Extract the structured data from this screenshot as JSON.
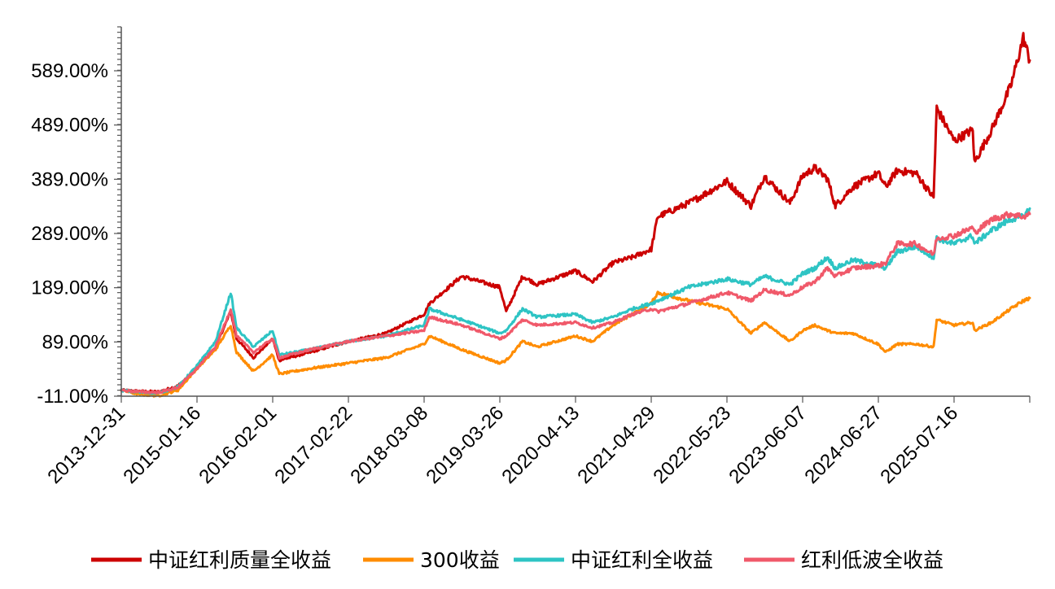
{
  "chart_data": {
    "type": "line",
    "title": "",
    "xlabel": "",
    "ylabel": "",
    "x_ticks": [
      "2013-12-31",
      "2015-01-16",
      "2016-02-01",
      "2017-02-22",
      "2018-03-08",
      "2019-03-26",
      "2020-04-13",
      "2021-04-29",
      "2022-05-23",
      "2023-06-07",
      "2024-06-27",
      "2025-07-16"
    ],
    "y_ticks": [
      -11,
      89,
      189,
      289,
      389,
      489,
      589
    ],
    "y_tick_labels": [
      "-11.00%",
      "89.00%",
      "189.00%",
      "289.00%",
      "389.00%",
      "489.00%",
      "589.00%"
    ],
    "ylim": [
      -11,
      670
    ],
    "xlim": [
      "2013-12-31",
      "2025-12-31"
    ],
    "grid": false,
    "legend_position": "bottom",
    "series": [
      {
        "name": "中证红利质量全收益",
        "color": "#cc0000",
        "points": [
          [
            "2013-12-31",
            0
          ],
          [
            "2014-03-31",
            -2
          ],
          [
            "2014-06-30",
            -3
          ],
          [
            "2014-09-30",
            8
          ],
          [
            "2014-12-31",
            40
          ],
          [
            "2015-03-31",
            80
          ],
          [
            "2015-06-12",
            145
          ],
          [
            "2015-07-10",
            95
          ],
          [
            "2015-09-30",
            60
          ],
          [
            "2015-12-31",
            95
          ],
          [
            "2016-02-01",
            55
          ],
          [
            "2016-06-30",
            70
          ],
          [
            "2016-12-31",
            90
          ],
          [
            "2017-06-30",
            105
          ],
          [
            "2017-12-31",
            140
          ],
          [
            "2018-01-26",
            160
          ],
          [
            "2018-06-30",
            210
          ],
          [
            "2018-12-31",
            190
          ],
          [
            "2019-01-31",
            145
          ],
          [
            "2019-04-20",
            210
          ],
          [
            "2019-06-30",
            195
          ],
          [
            "2019-12-31",
            220
          ],
          [
            "2020-03-23",
            200
          ],
          [
            "2020-06-30",
            235
          ],
          [
            "2020-09-30",
            245
          ],
          [
            "2020-12-31",
            260
          ],
          [
            "2021-01-31",
            320
          ],
          [
            "2021-06-30",
            345
          ],
          [
            "2021-12-31",
            385
          ],
          [
            "2022-04-26",
            340
          ],
          [
            "2022-06-30",
            395
          ],
          [
            "2022-10-31",
            345
          ],
          [
            "2022-12-31",
            395
          ],
          [
            "2023-02-28",
            410
          ],
          [
            "2023-04-30",
            390
          ],
          [
            "2023-06-07",
            340
          ],
          [
            "2023-08-31",
            375
          ],
          [
            "2023-12-31",
            400
          ],
          [
            "2024-02-05",
            375
          ],
          [
            "2024-03-31",
            405
          ],
          [
            "2024-06-30",
            400
          ],
          [
            "2024-09-23",
            355
          ],
          [
            "2024-10-08",
            520
          ],
          [
            "2024-12-31",
            460
          ],
          [
            "2025-03-31",
            480
          ],
          [
            "2025-04-08",
            420
          ],
          [
            "2025-06-30",
            480
          ],
          [
            "2025-09-30",
            560
          ],
          [
            "2025-11-30",
            650
          ],
          [
            "2025-12-31",
            608
          ]
        ]
      },
      {
        "name": "300收益",
        "color": "#ff8c00",
        "points": [
          [
            "2013-12-31",
            0
          ],
          [
            "2014-03-31",
            -8
          ],
          [
            "2014-06-30",
            -10
          ],
          [
            "2014-09-30",
            0
          ],
          [
            "2014-12-31",
            40
          ],
          [
            "2015-03-31",
            75
          ],
          [
            "2015-06-12",
            120
          ],
          [
            "2015-07-10",
            70
          ],
          [
            "2015-09-30",
            35
          ],
          [
            "2015-12-31",
            65
          ],
          [
            "2016-02-01",
            30
          ],
          [
            "2016-06-30",
            40
          ],
          [
            "2016-12-31",
            50
          ],
          [
            "2017-06-30",
            60
          ],
          [
            "2017-12-31",
            85
          ],
          [
            "2018-01-26",
            100
          ],
          [
            "2018-06-30",
            75
          ],
          [
            "2018-12-31",
            50
          ],
          [
            "2019-01-31",
            55
          ],
          [
            "2019-04-20",
            90
          ],
          [
            "2019-06-30",
            80
          ],
          [
            "2019-12-31",
            100
          ],
          [
            "2020-03-23",
            90
          ],
          [
            "2020-06-30",
            120
          ],
          [
            "2020-09-30",
            140
          ],
          [
            "2020-12-31",
            160
          ],
          [
            "2021-01-31",
            180
          ],
          [
            "2021-06-30",
            165
          ],
          [
            "2021-12-31",
            150
          ],
          [
            "2022-04-26",
            105
          ],
          [
            "2022-06-30",
            125
          ],
          [
            "2022-10-31",
            90
          ],
          [
            "2022-12-31",
            110
          ],
          [
            "2023-02-28",
            120
          ],
          [
            "2023-04-30",
            110
          ],
          [
            "2023-06-07",
            105
          ],
          [
            "2023-08-31",
            105
          ],
          [
            "2023-12-31",
            85
          ],
          [
            "2024-02-05",
            70
          ],
          [
            "2024-03-31",
            85
          ],
          [
            "2024-06-30",
            85
          ],
          [
            "2024-09-23",
            80
          ],
          [
            "2024-10-08",
            130
          ],
          [
            "2024-12-31",
            120
          ],
          [
            "2025-03-31",
            125
          ],
          [
            "2025-04-08",
            110
          ],
          [
            "2025-06-30",
            125
          ],
          [
            "2025-09-30",
            150
          ],
          [
            "2025-11-30",
            165
          ],
          [
            "2025-12-31",
            170
          ]
        ]
      },
      {
        "name": "中证红利全收益",
        "color": "#2ec4c4",
        "points": [
          [
            "2013-12-31",
            0
          ],
          [
            "2014-03-31",
            -4
          ],
          [
            "2014-06-30",
            -5
          ],
          [
            "2014-09-30",
            6
          ],
          [
            "2014-12-31",
            45
          ],
          [
            "2015-03-31",
            90
          ],
          [
            "2015-06-12",
            180
          ],
          [
            "2015-07-10",
            115
          ],
          [
            "2015-09-30",
            80
          ],
          [
            "2015-12-31",
            110
          ],
          [
            "2016-02-01",
            65
          ],
          [
            "2016-06-30",
            75
          ],
          [
            "2016-12-31",
            90
          ],
          [
            "2017-06-30",
            100
          ],
          [
            "2017-12-31",
            120
          ],
          [
            "2018-01-26",
            150
          ],
          [
            "2018-06-30",
            130
          ],
          [
            "2018-12-31",
            105
          ],
          [
            "2019-01-31",
            110
          ],
          [
            "2019-04-20",
            150
          ],
          [
            "2019-06-30",
            135
          ],
          [
            "2019-12-31",
            140
          ],
          [
            "2020-03-23",
            125
          ],
          [
            "2020-06-30",
            135
          ],
          [
            "2020-09-30",
            150
          ],
          [
            "2020-12-31",
            160
          ],
          [
            "2021-01-31",
            165
          ],
          [
            "2021-06-30",
            190
          ],
          [
            "2021-12-31",
            205
          ],
          [
            "2022-04-26",
            195
          ],
          [
            "2022-06-30",
            210
          ],
          [
            "2022-10-31",
            195
          ],
          [
            "2022-12-31",
            215
          ],
          [
            "2023-02-28",
            225
          ],
          [
            "2023-04-30",
            245
          ],
          [
            "2023-06-07",
            225
          ],
          [
            "2023-08-31",
            240
          ],
          [
            "2023-12-31",
            230
          ],
          [
            "2024-02-05",
            225
          ],
          [
            "2024-03-31",
            255
          ],
          [
            "2024-06-30",
            265
          ],
          [
            "2024-09-23",
            245
          ],
          [
            "2024-10-08",
            280
          ],
          [
            "2024-12-31",
            270
          ],
          [
            "2025-03-31",
            285
          ],
          [
            "2025-04-08",
            270
          ],
          [
            "2025-06-30",
            295
          ],
          [
            "2025-09-30",
            315
          ],
          [
            "2025-11-30",
            320
          ],
          [
            "2025-12-31",
            335
          ]
        ]
      },
      {
        "name": "红利低波全收益",
        "color": "#f0596a",
        "points": [
          [
            "2013-12-31",
            0
          ],
          [
            "2014-03-31",
            -3
          ],
          [
            "2014-06-30",
            -4
          ],
          [
            "2014-09-30",
            5
          ],
          [
            "2014-12-31",
            40
          ],
          [
            "2015-03-31",
            80
          ],
          [
            "2015-06-12",
            150
          ],
          [
            "2015-07-10",
            100
          ],
          [
            "2015-09-30",
            70
          ],
          [
            "2015-12-31",
            95
          ],
          [
            "2016-02-01",
            60
          ],
          [
            "2016-06-30",
            75
          ],
          [
            "2016-12-31",
            90
          ],
          [
            "2017-06-30",
            100
          ],
          [
            "2017-12-31",
            110
          ],
          [
            "2018-01-26",
            135
          ],
          [
            "2018-06-30",
            120
          ],
          [
            "2018-12-31",
            95
          ],
          [
            "2019-01-31",
            100
          ],
          [
            "2019-04-20",
            130
          ],
          [
            "2019-06-30",
            120
          ],
          [
            "2019-12-31",
            125
          ],
          [
            "2020-03-23",
            115
          ],
          [
            "2020-06-30",
            125
          ],
          [
            "2020-09-30",
            140
          ],
          [
            "2020-12-31",
            150
          ],
          [
            "2021-01-31",
            145
          ],
          [
            "2021-06-30",
            160
          ],
          [
            "2021-12-31",
            180
          ],
          [
            "2022-04-26",
            165
          ],
          [
            "2022-06-30",
            185
          ],
          [
            "2022-10-31",
            175
          ],
          [
            "2022-12-31",
            190
          ],
          [
            "2023-02-28",
            200
          ],
          [
            "2023-04-30",
            225
          ],
          [
            "2023-06-07",
            210
          ],
          [
            "2023-08-31",
            225
          ],
          [
            "2023-12-31",
            230
          ],
          [
            "2024-02-05",
            235
          ],
          [
            "2024-03-31",
            270
          ],
          [
            "2024-06-30",
            270
          ],
          [
            "2024-09-23",
            250
          ],
          [
            "2024-10-08",
            280
          ],
          [
            "2024-12-31",
            285
          ],
          [
            "2025-03-31",
            300
          ],
          [
            "2025-04-08",
            290
          ],
          [
            "2025-06-30",
            315
          ],
          [
            "2025-09-30",
            325
          ],
          [
            "2025-11-30",
            320
          ],
          [
            "2025-12-31",
            325
          ]
        ]
      }
    ]
  }
}
